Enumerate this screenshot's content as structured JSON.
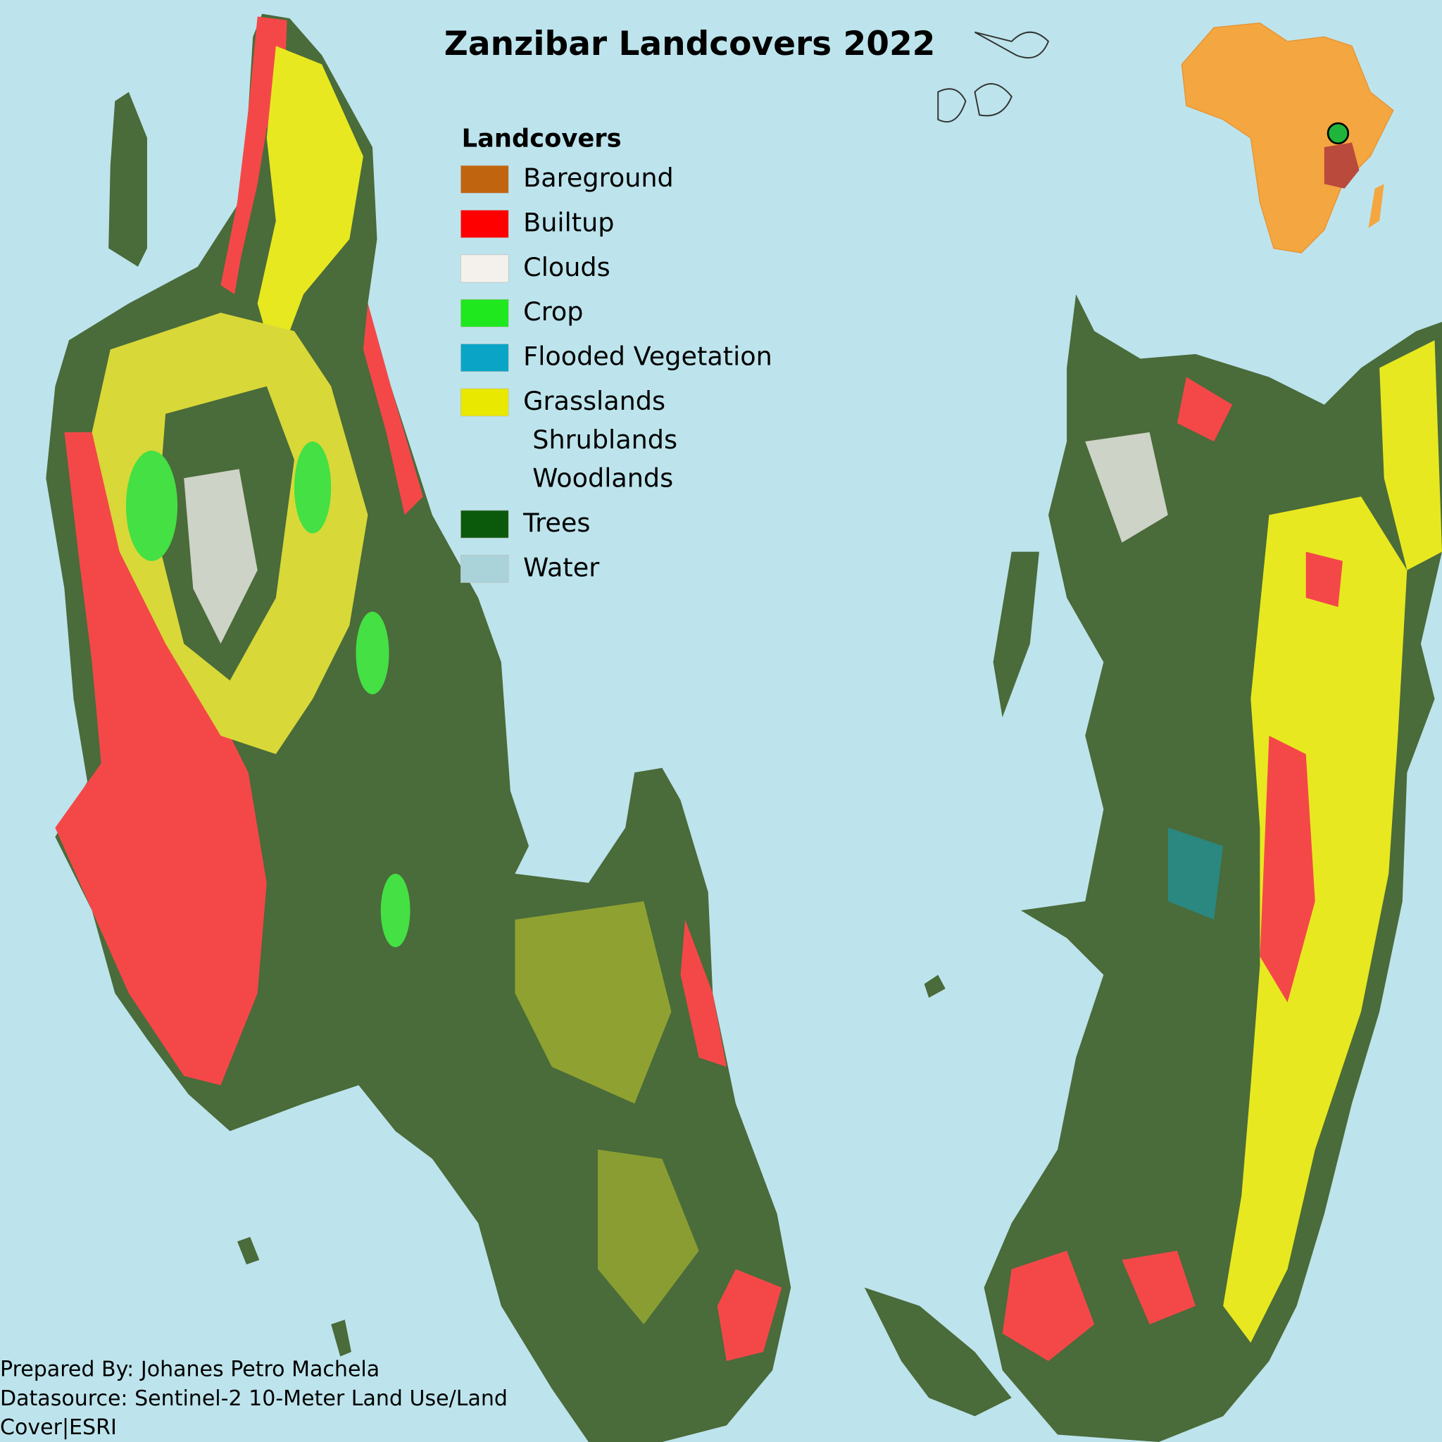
{
  "title": "Zanzibar Landcovers 2022",
  "legend": {
    "title": "Landcovers",
    "items": [
      {
        "label_lines": [
          "Bareground"
        ],
        "color": "#c0640f"
      },
      {
        "label_lines": [
          "Builtup"
        ],
        "color": "#ff0000"
      },
      {
        "label_lines": [
          "Clouds"
        ],
        "color": "#f4f1ec"
      },
      {
        "label_lines": [
          "Crop"
        ],
        "color": "#1fe81f"
      },
      {
        "label_lines": [
          "Flooded Vegetation"
        ],
        "color": "#0aa5c6"
      },
      {
        "label_lines": [
          "Grasslands",
          "Shrublands",
          "Woodlands"
        ],
        "color": "#e8e800"
      },
      {
        "label_lines": [
          "Trees"
        ],
        "color": "#0b5a0b"
      },
      {
        "label_lines": [
          "Water"
        ],
        "color": "#a9d3d9"
      }
    ]
  },
  "credits": [
    "Prepared By: Johanes Petro Machela",
    "Datasource: Sentinel-2 10-Meter Land Use/Land",
    "Cover|ESRI"
  ]
}
